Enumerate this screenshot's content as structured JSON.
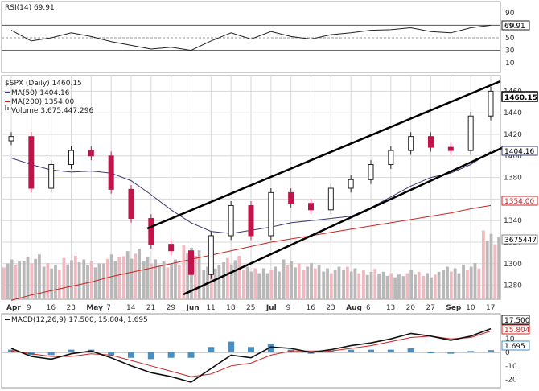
{
  "colors": {
    "up": "#222222",
    "down": "#c0144a",
    "ma50": "#3a3a78",
    "ma200": "#cc2222",
    "rsi": "#222222",
    "macd": "#111111",
    "signal": "#cc2222",
    "hist": "#4a8fc0",
    "vol_up": "#b8b8b8",
    "vol_down": "#f0b8c0",
    "grid": "#d8d8d8",
    "channel": "#000000"
  },
  "rsi_panel": {
    "label": "RSI(14) 69.91",
    "value_box": "69.91",
    "levels": [
      "90",
      "70",
      "50",
      "30",
      "10"
    ]
  },
  "price_panel": {
    "label": "$SPX (Daily) 1460.15",
    "ma50_label": "MA(50) 1404.16",
    "ma200_label": "MA(200) 1354.00",
    "volume_label": "Volume 3,675,447,296",
    "price_box": "1460.15",
    "ma50_box": "1404.16",
    "ma200_box": "1354.00",
    "volume_box": "3675447",
    "y_ticks": [
      "1460",
      "1440",
      "1420",
      "1400",
      "1380",
      "1360",
      "1340",
      "1320",
      "1300",
      "1280"
    ]
  },
  "x_axis": [
    "Apr",
    "9",
    "16",
    "23",
    "May",
    "7",
    "14",
    "21",
    "29",
    "Jun",
    "11",
    "18",
    "25",
    "Jul",
    "9",
    "16",
    "23",
    "Aug",
    "6",
    "13",
    "20",
    "27",
    "Sep",
    "10",
    "17"
  ],
  "macd_panel": {
    "label_main": "MACD(12,26,9) 17.500,",
    "label_signal": "15.804,",
    "label_hist": "1.695",
    "macd_box": "17.500",
    "signal_box": "15.804",
    "hist_box": "1.695",
    "y_ticks": [
      "10",
      "0",
      "-10",
      "-20"
    ]
  },
  "chart_data": {
    "type": "candlestick",
    "x": [
      "Apr 2",
      "Apr 9",
      "Apr 16",
      "Apr 23",
      "Apr 30",
      "May 7",
      "May 14",
      "May 21",
      "May 29",
      "Jun 4",
      "Jun 11",
      "Jun 18",
      "Jun 25",
      "Jul 2",
      "Jul 9",
      "Jul 16",
      "Jul 23",
      "Jul 30",
      "Aug 6",
      "Aug 13",
      "Aug 20",
      "Aug 27",
      "Sep 4",
      "Sep 10",
      "Sep 17"
    ],
    "close": [
      1418,
      1370,
      1392,
      1405,
      1400,
      1369,
      1342,
      1318,
      1312,
      1290,
      1326,
      1354,
      1326,
      1366,
      1356,
      1350,
      1370,
      1378,
      1392,
      1405,
      1418,
      1408,
      1405,
      1437,
      1460
    ],
    "ma50": [
      1398,
      1392,
      1387,
      1385,
      1386,
      1384,
      1377,
      1364,
      1350,
      1338,
      1330,
      1328,
      1331,
      1334,
      1338,
      1340,
      1342,
      1344,
      1352,
      1362,
      1372,
      1380,
      1384,
      1392,
      1404
    ],
    "ma200": [
      1266,
      1271,
      1275,
      1279,
      1283,
      1288,
      1292,
      1296,
      1300,
      1304,
      1308,
      1312,
      1316,
      1320,
      1323,
      1326,
      1329,
      1332,
      1335,
      1338,
      1341,
      1344,
      1347,
      1351,
      1354
    ],
    "volume_pct": [
      0.55,
      0.62,
      0.5,
      0.6,
      0.55,
      0.62,
      0.7,
      0.58,
      0.55,
      0.75,
      0.5,
      0.6,
      0.45,
      0.45,
      0.55,
      0.5,
      0.45,
      0.45,
      0.42,
      0.38,
      0.4,
      0.38,
      0.45,
      0.5,
      0.95
    ],
    "rsi": [
      62,
      45,
      50,
      58,
      52,
      44,
      38,
      32,
      35,
      30,
      45,
      58,
      48,
      60,
      52,
      48,
      55,
      58,
      62,
      63,
      66,
      60,
      58,
      66,
      70
    ],
    "macd": [
      3,
      -3,
      -5,
      -1,
      1,
      -4,
      -10,
      -15,
      -18,
      -22,
      -12,
      -2,
      -4,
      4,
      3,
      0,
      2,
      5,
      7,
      10,
      14,
      12,
      9,
      12,
      17.5
    ],
    "signal": [
      1,
      -1,
      -3,
      -3,
      -1,
      -2,
      -6,
      -10,
      -14,
      -18,
      -16,
      -10,
      -8,
      -2,
      1,
      1,
      1,
      3,
      5,
      8,
      11,
      12,
      10,
      11,
      15.8
    ],
    "y_range": [
      1270,
      1470
    ],
    "rsi_range": [
      0,
      100
    ],
    "macd_range": [
      -25,
      25
    ]
  }
}
